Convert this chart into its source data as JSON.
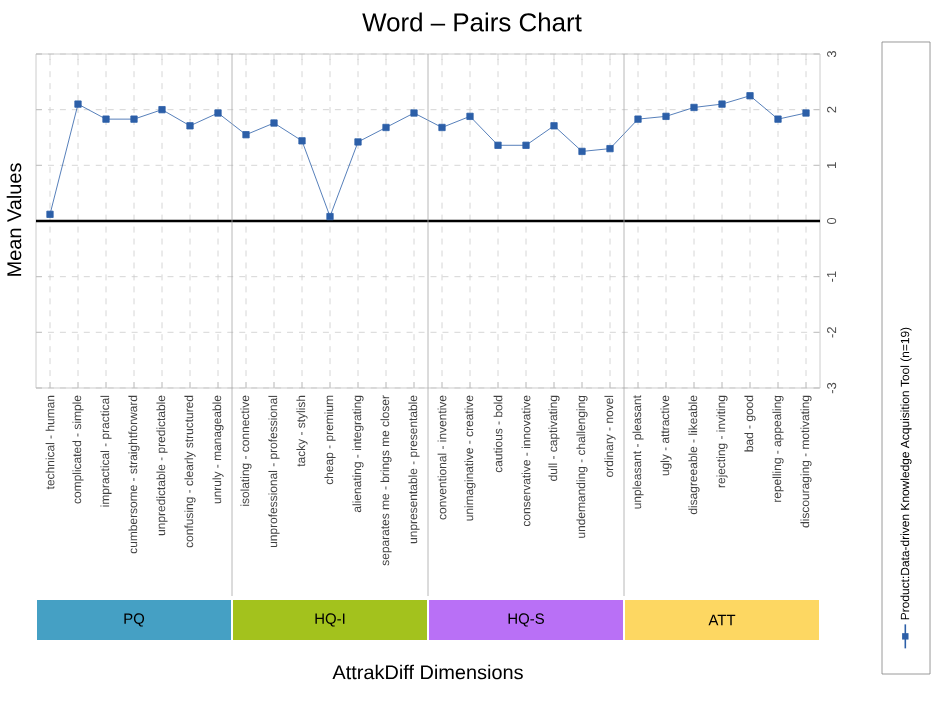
{
  "chart_data": {
    "type": "line",
    "title": "Word – Pairs Chart",
    "xlabel": "AttrakDiff Dimensions",
    "ylabel": "Mean Values",
    "categories": [
      "technical - human",
      "complicated - simple",
      "impractical - practical",
      "cumbersome - straightforward",
      "unpredictable - predictable",
      "confusing - clearly structured",
      "unruly - manageable",
      "isolating - connective",
      "unprofessional - professional",
      "tacky - stylish",
      "cheap - premium",
      "alienating - integrating",
      "separates me - brings me closer",
      "unpresentable - presentable",
      "conventional - inventive",
      "unimaginative - creative",
      "cautious - bold",
      "conservative - innovative",
      "dull - captivating",
      "undemanding - challenging",
      "ordinary - novel",
      "unpleasant - pleasant",
      "ugly - attractive",
      "disagreeable - likeable",
      "rejecting - inviting",
      "bad - good",
      "repelling - appealing",
      "discouraging - motivating"
    ],
    "series": [
      {
        "name": "Product:Data-driven Knowledge Acquisition Tool (n=19)",
        "color": "#2c5fa8",
        "values": [
          0.12,
          2.1,
          1.83,
          1.83,
          2.0,
          1.71,
          1.94,
          1.55,
          1.76,
          1.44,
          0.08,
          1.42,
          1.68,
          1.94,
          1.68,
          1.88,
          1.36,
          1.36,
          1.71,
          1.25,
          1.3,
          1.83,
          1.88,
          2.04,
          2.1,
          2.25,
          1.83,
          1.94
        ]
      }
    ],
    "ylim": [
      -3,
      3
    ],
    "yticks": [
      -3,
      -2,
      -1,
      0,
      1,
      2,
      3
    ],
    "grid": true,
    "marker": "square",
    "legend": "right",
    "annotations": [
      "PQ",
      "HQ-I",
      "HQ-S",
      "ATT"
    ]
  }
}
